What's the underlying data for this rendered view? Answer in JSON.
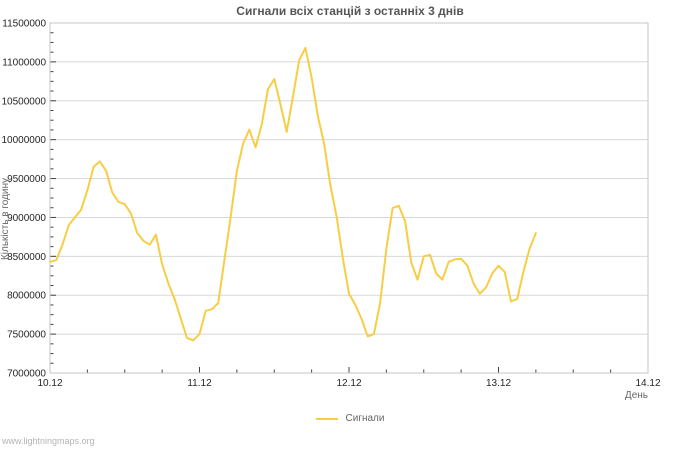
{
  "watermark": "www.lightningmaps.org",
  "chart_data": {
    "type": "line",
    "title": "Сигнали всіх станцій з останніх 3 днів",
    "xlabel": "День",
    "ylabel": "Кількість в годину",
    "legend_entries": [
      "Сигнали"
    ],
    "legend_position": "bottom-center",
    "grid": "horizontal-only",
    "background": "#ffffff",
    "ylim": [
      7000000,
      11500000
    ],
    "y_major_step": 500000,
    "y_minor_step": 125000,
    "y_tick_labels": [
      "7000000",
      "7500000",
      "8000000",
      "8500000",
      "9000000",
      "9500000",
      "10000000",
      "10500000",
      "11000000",
      "11500000"
    ],
    "x_days": [
      "10.12",
      "11.12",
      "12.12",
      "13.12",
      "14.12"
    ],
    "x_minor_step_days": 0.25,
    "colors": {
      "line": "#f8cd46",
      "grid": "#d8d8d8",
      "plot_border": "#c6c6c6",
      "tick": "#444444",
      "tick_text": "#262626",
      "title_text": "#565656",
      "muted_text": "#666666",
      "watermark_text": "#b4b4b4"
    },
    "series": [
      {
        "name": "Сигнали",
        "color": "#f8cd46",
        "start_day_offset": 0,
        "step_hours": 1,
        "values": [
          8430000,
          8450000,
          8650000,
          8900000,
          9000000,
          9100000,
          9350000,
          9650000,
          9720000,
          9600000,
          9320000,
          9200000,
          9170000,
          9050000,
          8800000,
          8700000,
          8650000,
          8780000,
          8400000,
          8150000,
          7950000,
          7700000,
          7450000,
          7420000,
          7500000,
          7800000,
          7820000,
          7900000,
          8450000,
          9000000,
          9600000,
          9950000,
          10130000,
          9900000,
          10200000,
          10650000,
          10780000,
          10450000,
          10100000,
          10550000,
          11020000,
          11180000,
          10800000,
          10300000,
          9950000,
          9420000,
          9020000,
          8480000,
          8020000,
          7880000,
          7700000,
          7470000,
          7500000,
          7900000,
          8600000,
          9120000,
          9150000,
          8950000,
          8420000,
          8200000,
          8500000,
          8520000,
          8280000,
          8200000,
          8430000,
          8460000,
          8470000,
          8380000,
          8150000,
          8020000,
          8100000,
          8280000,
          8380000,
          8300000,
          7920000,
          7950000,
          8300000,
          8600000,
          8800000
        ]
      }
    ]
  }
}
